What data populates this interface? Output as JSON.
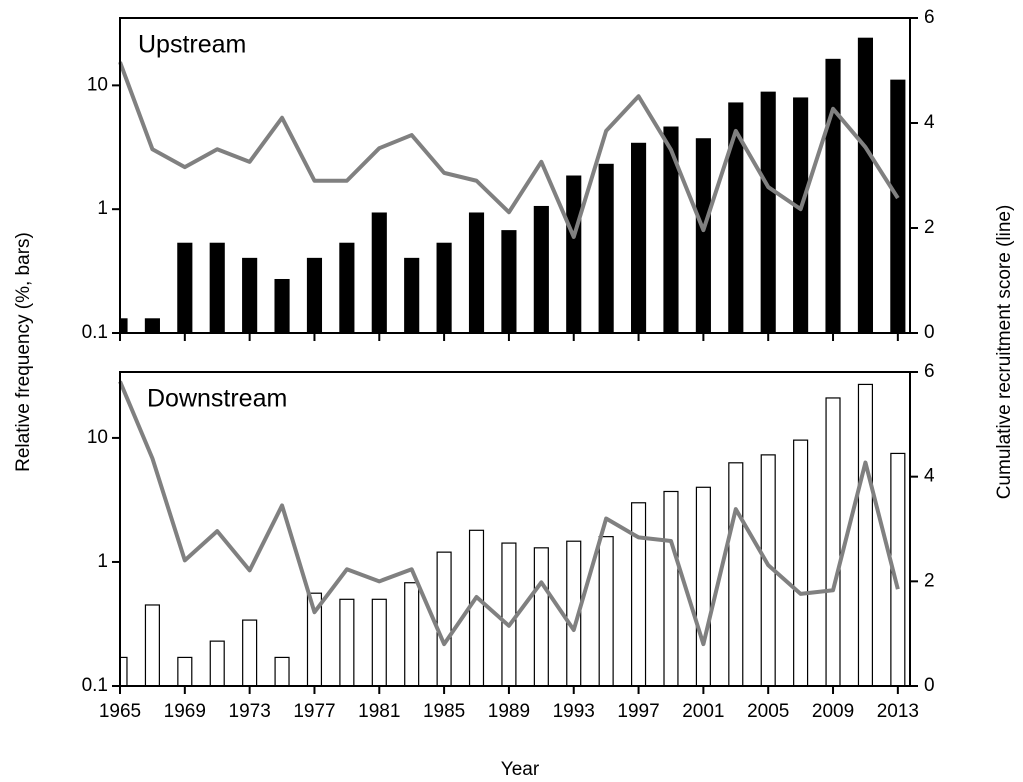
{
  "chart_data": [
    {
      "type": "bar_line",
      "title": "Upstream",
      "x": [
        1965,
        1967,
        1969,
        1971,
        1973,
        1975,
        1977,
        1979,
        1981,
        1983,
        1985,
        1987,
        1989,
        1991,
        1993,
        1995,
        1997,
        1999,
        2001,
        2003,
        2005,
        2007,
        2009,
        2011,
        2013
      ],
      "xlim": [
        1965,
        2013.75
      ],
      "xticks": [
        1965,
        1969,
        1973,
        1977,
        1981,
        1985,
        1989,
        1993,
        1997,
        2001,
        2005,
        2009,
        2013
      ],
      "ylim": [
        0.1,
        35
      ],
      "yticks": [
        0.1,
        1,
        10
      ],
      "log_y": true,
      "y2lim": [
        0,
        6
      ],
      "y2ticks": [
        0,
        2,
        4,
        6
      ],
      "series": [
        {
          "name": "bars",
          "kind": "bar",
          "color": "#000000",
          "values": [
            0.13,
            0.13,
            0.53,
            0.53,
            0.4,
            0.27,
            0.4,
            0.53,
            0.93,
            0.4,
            0.53,
            0.93,
            0.67,
            1.05,
            1.85,
            2.3,
            3.4,
            4.6,
            3.7,
            7.2,
            8.8,
            7.9,
            16.2,
            24,
            11
          ]
        },
        {
          "name": "line",
          "kind": "line",
          "axis": "y2",
          "color": "#808080",
          "values": [
            5.16,
            3.5,
            3.16,
            3.5,
            3.26,
            4.1,
            2.9,
            2.9,
            3.52,
            3.77,
            3.05,
            2.9,
            2.3,
            3.26,
            1.83,
            3.85,
            4.51,
            3.49,
            1.96,
            3.85,
            2.78,
            2.36,
            4.27,
            3.54,
            2.57
          ]
        }
      ]
    },
    {
      "type": "bar_line",
      "title": "Downstream",
      "x": [
        1965,
        1967,
        1969,
        1971,
        1973,
        1975,
        1977,
        1979,
        1981,
        1983,
        1985,
        1987,
        1989,
        1991,
        1993,
        1995,
        1997,
        1999,
        2001,
        2003,
        2005,
        2007,
        2009,
        2011,
        2013
      ],
      "xlim": [
        1965,
        2013.75
      ],
      "xticks": [
        1965,
        1969,
        1973,
        1977,
        1981,
        1985,
        1989,
        1993,
        1997,
        2001,
        2005,
        2009,
        2013
      ],
      "ylim": [
        0.1,
        34
      ],
      "yticks": [
        0.1,
        1,
        10
      ],
      "log_y": true,
      "y2lim": [
        0,
        6
      ],
      "y2ticks": [
        0,
        2,
        4,
        6
      ],
      "xlabel": "Year",
      "ylabel": "Relative frequency (%, bars)",
      "y2label": "Cumulative recruitment score (line)",
      "series": [
        {
          "name": "bars",
          "kind": "bar",
          "color": "#ffffff",
          "values": [
            0.17,
            0.45,
            0.17,
            0.23,
            0.34,
            0.17,
            0.56,
            0.5,
            0.5,
            0.68,
            1.2,
            1.8,
            1.42,
            1.3,
            1.47,
            1.6,
            3.0,
            3.7,
            4.0,
            6.3,
            7.3,
            9.6,
            21,
            27,
            7.5
          ]
        },
        {
          "name": "line",
          "kind": "line",
          "axis": "y2",
          "color": "#808080",
          "values": [
            5.82,
            4.35,
            2.4,
            2.96,
            2.21,
            3.45,
            1.41,
            2.23,
            2.0,
            2.23,
            0.8,
            1.7,
            1.15,
            1.98,
            1.07,
            3.2,
            2.84,
            2.77,
            0.8,
            3.38,
            2.31,
            1.76,
            1.83,
            4.27,
            1.85
          ]
        }
      ]
    }
  ]
}
